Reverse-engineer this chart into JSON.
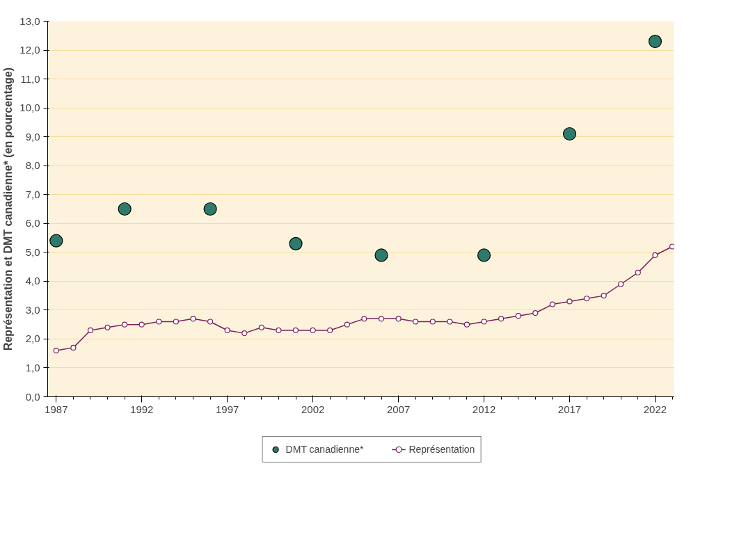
{
  "chart_data": {
    "type": "line",
    "ylabel": "Représentation et DMT canadienne* (en pourcentage)",
    "xlim": [
      1986.5,
      2023.1
    ],
    "xticks": [
      1987,
      1992,
      1997,
      2002,
      2007,
      2012,
      2017,
      2022
    ],
    "ylim": [
      0,
      13
    ],
    "yticks": [
      {
        "value": 0,
        "label": "0,0"
      },
      {
        "value": 1,
        "label": "1,0"
      },
      {
        "value": 2,
        "label": "2,0"
      },
      {
        "value": 3,
        "label": "3,0"
      },
      {
        "value": 4,
        "label": "4,0"
      },
      {
        "value": 5,
        "label": "5,0"
      },
      {
        "value": 6,
        "label": "6,0"
      },
      {
        "value": 7,
        "label": "7,0"
      },
      {
        "value": 8,
        "label": "8,0"
      },
      {
        "value": 9,
        "label": "9,0"
      },
      {
        "value": 10,
        "label": "10,0"
      },
      {
        "value": 11,
        "label": "11,0"
      },
      {
        "value": 12,
        "label": "12,0"
      },
      {
        "value": 13,
        "label": "13,0"
      }
    ],
    "grid": "y",
    "legend": "bottom",
    "series": [
      {
        "name": "DMT canadienne*",
        "type": "scatter",
        "color": "#2e7a6c",
        "x": [
          1987,
          1991,
          1996,
          2001,
          2006,
          2012,
          2017,
          2022
        ],
        "values": [
          5.4,
          6.5,
          6.5,
          5.3,
          4.9,
          4.9,
          9.1,
          12.3
        ]
      },
      {
        "name": "Représentation",
        "marker": "circle",
        "color": "#7a1f5c",
        "x": [
          1987,
          1988,
          1989,
          1990,
          1991,
          1992,
          1993,
          1994,
          1995,
          1996,
          1997,
          1998,
          1999,
          2000,
          2001,
          2002,
          2003,
          2004,
          2005,
          2006,
          2007,
          2008,
          2009,
          2010,
          2011,
          2012,
          2013,
          2014,
          2015,
          2016,
          2017,
          2018,
          2019,
          2020,
          2021,
          2022,
          2023
        ],
        "values": [
          1.6,
          1.7,
          2.3,
          2.4,
          2.5,
          2.5,
          2.6,
          2.6,
          2.7,
          2.6,
          2.3,
          2.2,
          2.4,
          2.3,
          2.3,
          2.3,
          2.3,
          2.5,
          2.7,
          2.7,
          2.7,
          2.6,
          2.6,
          2.6,
          2.5,
          2.6,
          2.7,
          2.8,
          2.9,
          3.2,
          3.3,
          3.4,
          3.5,
          3.9,
          4.3,
          4.9,
          5.2
        ]
      }
    ]
  }
}
